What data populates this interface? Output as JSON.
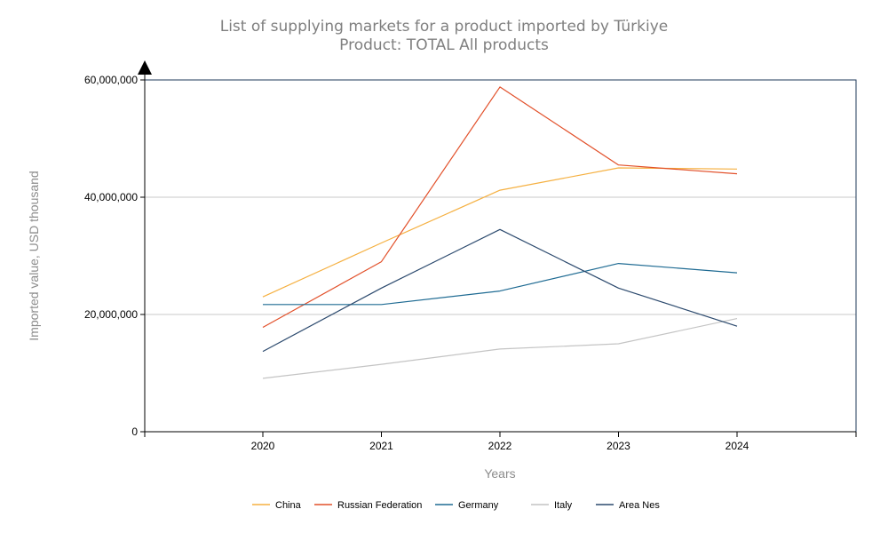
{
  "chart_data": {
    "type": "line",
    "title": "List of supplying markets for a product imported by Türkiye",
    "subtitle": "Product: TOTAL All products",
    "xlabel": "Years",
    "ylabel": "Imported value, USD thousand",
    "categories": [
      "2020",
      "2021",
      "2022",
      "2023",
      "2024"
    ],
    "y_ticks": [
      "0",
      "20,000,000",
      "40,000,000",
      "60,000,000"
    ],
    "ylim": [
      0,
      60000000
    ],
    "grid": true,
    "legend_position": "bottom",
    "series": [
      {
        "name": "China",
        "color": "#f5b041",
        "values": [
          23000000,
          32200000,
          41200000,
          45000000,
          44800000
        ]
      },
      {
        "name": "Russian Federation",
        "color": "#e2502a",
        "values": [
          17800000,
          29000000,
          58800000,
          45500000,
          44000000
        ]
      },
      {
        "name": "Germany",
        "color": "#1f6b93",
        "values": [
          21700000,
          21700000,
          24000000,
          28700000,
          27100000
        ]
      },
      {
        "name": "Italy",
        "color": "#c4c4c4",
        "values": [
          9100000,
          11500000,
          14100000,
          15000000,
          19300000
        ]
      },
      {
        "name": "Area Nes",
        "color": "#2c4a6e",
        "values": [
          13700000,
          24500000,
          34500000,
          24500000,
          18000000
        ]
      }
    ]
  }
}
